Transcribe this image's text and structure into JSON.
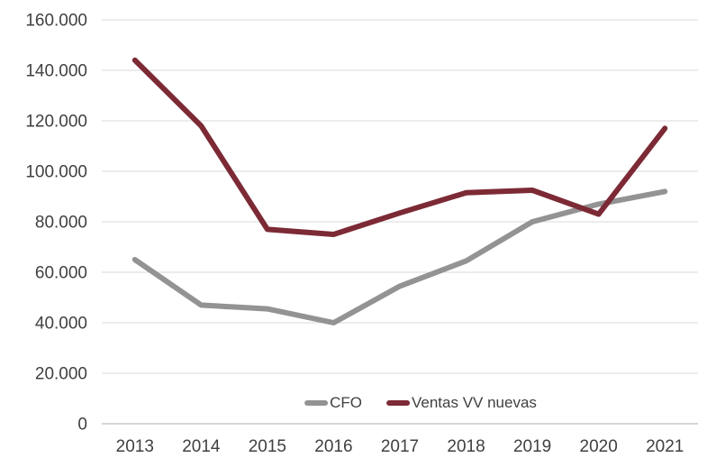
{
  "chart_data": {
    "type": "line",
    "title": "",
    "xlabel": "",
    "ylabel": "",
    "categories": [
      "2013",
      "2014",
      "2015",
      "2016",
      "2017",
      "2018",
      "2019",
      "2020",
      "2021"
    ],
    "series": [
      {
        "name": "CFO",
        "color": "#939393",
        "values": [
          65000,
          47000,
          45500,
          40000,
          54500,
          64500,
          80000,
          87000,
          92000
        ]
      },
      {
        "name": "Ventas VV nuevas",
        "color": "#7C2A35",
        "values": [
          144000,
          118000,
          77000,
          75000,
          83500,
          91500,
          92500,
          83000,
          117000
        ]
      }
    ],
    "ylim": [
      0,
      160000
    ],
    "ytick_step": 20000,
    "ytick_labels": [
      "0",
      "20.000",
      "40.000",
      "60.000",
      "80.000",
      "100.000",
      "120.000",
      "140.000",
      "160.000"
    ],
    "grid": true,
    "legend_position": "bottom-center-inside",
    "colors": {
      "grid": "#D9D9D9",
      "axis": "#BFBFBF",
      "tick_text": "#404040",
      "background": "#FFFFFF"
    }
  }
}
